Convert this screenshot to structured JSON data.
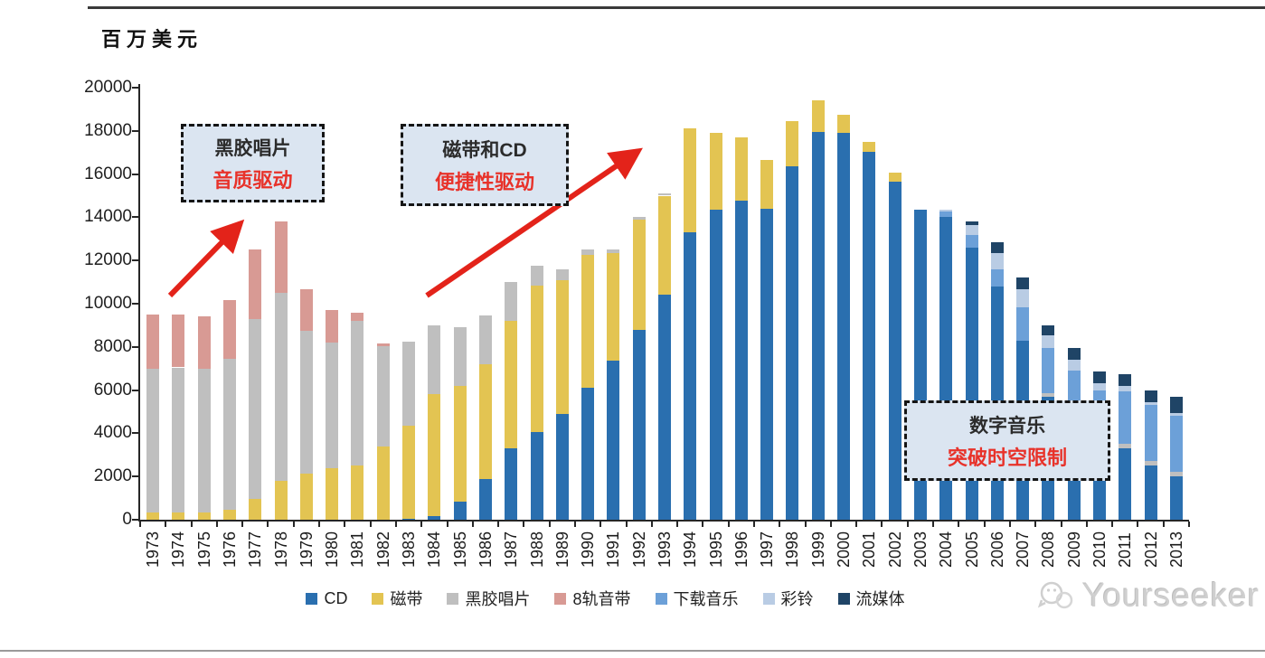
{
  "page": {
    "unit_label": "百万美元",
    "watermark_text": "Yourseeker"
  },
  "annotations": [
    {
      "line1": "黑胶唱片",
      "line2": "音质驱动"
    },
    {
      "line1": "磁带和CD",
      "line2": "便捷性驱动"
    },
    {
      "line1": "数字音乐",
      "line2": "突破时空限制"
    }
  ],
  "colors": {
    "cd": "#2A6FAF",
    "cassette": "#E3C452",
    "vinyl": "#BFBFBF",
    "eight_track": "#D89A94",
    "download": "#6CA0D8",
    "ringtone": "#B9CCE4",
    "streaming": "#1F4466",
    "arrow_red": "#E3231A",
    "annotation_fill": "#DBE5F1",
    "annotation_red_text": "#E8322A"
  },
  "chart_data": {
    "type": "bar",
    "stacked": true,
    "title": "",
    "ylabel": "百万美元",
    "xlabel": "",
    "ylim": [
      0,
      20000
    ],
    "y_tick_step": 2000,
    "grid": false,
    "legend_position": "bottom",
    "categories": [
      "1973",
      "1974",
      "1975",
      "1976",
      "1977",
      "1978",
      "1979",
      "1980",
      "1981",
      "1982",
      "1983",
      "1984",
      "1985",
      "1986",
      "1987",
      "1988",
      "1989",
      "1990",
      "1991",
      "1992",
      "1993",
      "1994",
      "1995",
      "1996",
      "1997",
      "1998",
      "1999",
      "2000",
      "2001",
      "2002",
      "2003",
      "2004",
      "2005",
      "2006",
      "2007",
      "2008",
      "2009",
      "2010",
      "2011",
      "2012",
      "2013"
    ],
    "series": [
      {
        "key": "cd",
        "label": "CD",
        "color": "#2A6FAF",
        "values": [
          0,
          0,
          0,
          0,
          0,
          0,
          0,
          0,
          0,
          0,
          50,
          150,
          850,
          1900,
          3300,
          4050,
          4900,
          6100,
          7350,
          8800,
          10400,
          13300,
          14350,
          14750,
          14400,
          16350,
          17950,
          17900,
          17050,
          15650,
          14350,
          14000,
          12600,
          10800,
          8300,
          5700,
          4300,
          3500,
          3300,
          2500,
          2000
        ]
      },
      {
        "key": "cassette",
        "label": "磁带",
        "color": "#E3C452",
        "values": [
          350,
          350,
          350,
          450,
          950,
          1800,
          2150,
          2400,
          2500,
          3400,
          4300,
          5650,
          5350,
          5300,
          5900,
          6800,
          6200,
          6150,
          5000,
          5100,
          4600,
          4800,
          3550,
          2950,
          2250,
          2100,
          1450,
          850,
          450,
          400,
          0,
          0,
          0,
          0,
          0,
          0,
          0,
          0,
          0,
          0,
          0
        ]
      },
      {
        "key": "vinyl",
        "label": "黑胶唱片",
        "color": "#BFBFBF",
        "values": [
          6650,
          6700,
          6650,
          7000,
          8350,
          8700,
          6600,
          5800,
          6700,
          4650,
          3900,
          3200,
          2700,
          2250,
          1800,
          900,
          500,
          250,
          150,
          100,
          100,
          0,
          0,
          0,
          0,
          0,
          0,
          0,
          0,
          0,
          0,
          0,
          0,
          0,
          0,
          150,
          150,
          150,
          200,
          200,
          200
        ]
      },
      {
        "key": "eight_track",
        "label": "8轨音带",
        "color": "#D89A94",
        "values": [
          2500,
          2450,
          2400,
          2700,
          3200,
          3300,
          1900,
          1500,
          400,
          100,
          0,
          0,
          0,
          0,
          0,
          0,
          0,
          0,
          0,
          0,
          0,
          0,
          0,
          0,
          0,
          0,
          0,
          0,
          0,
          0,
          0,
          0,
          0,
          0,
          0,
          0,
          0,
          0,
          0,
          0,
          0
        ]
      },
      {
        "key": "download",
        "label": "下载音乐",
        "color": "#6CA0D8",
        "values": [
          0,
          0,
          0,
          0,
          0,
          0,
          0,
          0,
          0,
          0,
          0,
          0,
          0,
          0,
          0,
          0,
          0,
          0,
          0,
          0,
          0,
          0,
          0,
          0,
          0,
          0,
          0,
          0,
          0,
          0,
          0,
          250,
          600,
          800,
          1550,
          2100,
          2450,
          2350,
          2450,
          2600,
          2600
        ]
      },
      {
        "key": "ringtone",
        "label": "彩铃",
        "color": "#B9CCE4",
        "values": [
          0,
          0,
          0,
          0,
          0,
          0,
          0,
          0,
          0,
          0,
          0,
          0,
          0,
          0,
          0,
          0,
          0,
          0,
          0,
          0,
          0,
          0,
          0,
          0,
          0,
          0,
          0,
          0,
          0,
          0,
          0,
          100,
          450,
          750,
          800,
          600,
          500,
          300,
          250,
          150,
          150
        ]
      },
      {
        "key": "streaming",
        "label": "流媒体",
        "color": "#1F4466",
        "values": [
          0,
          0,
          0,
          0,
          0,
          0,
          0,
          0,
          0,
          0,
          0,
          0,
          0,
          0,
          0,
          0,
          0,
          0,
          0,
          0,
          0,
          0,
          0,
          0,
          0,
          0,
          0,
          0,
          0,
          0,
          0,
          0,
          150,
          500,
          550,
          450,
          550,
          550,
          550,
          550,
          750
        ]
      }
    ]
  }
}
